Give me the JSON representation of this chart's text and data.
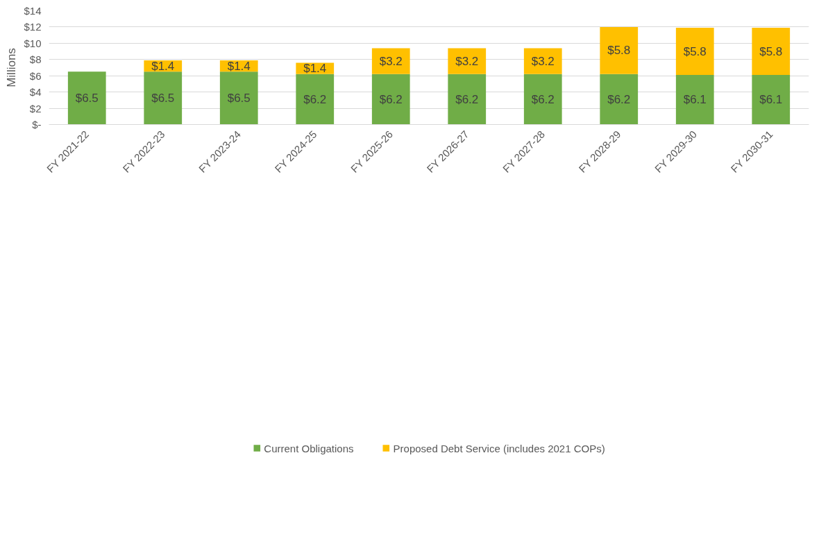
{
  "chart_data": {
    "type": "bar",
    "stacked": true,
    "ylabel": "Millions",
    "categories": [
      "FY 2021-22",
      "FY 2022-23",
      "FY 2023-24",
      "FY 2024-25",
      "FY 2025-26",
      "FY 2026-27",
      "FY 2027-28",
      "FY 2028-29",
      "FY 2029-30",
      "FY 2030-31"
    ],
    "series": [
      {
        "name": "Current Obligations",
        "color": "#70ad47",
        "values": [
          6.5,
          6.5,
          6.5,
          6.2,
          6.2,
          6.2,
          6.2,
          6.2,
          6.1,
          6.1
        ],
        "value_labels": [
          "$6.5",
          "$6.5",
          "$6.5",
          "$6.2",
          "$6.2",
          "$6.2",
          "$6.2",
          "$6.2",
          "$6.1",
          "$6.1"
        ]
      },
      {
        "name": "Proposed Debt Service (includes 2021 COPs)",
        "color": "#ffc000",
        "values": [
          null,
          1.4,
          1.4,
          1.4,
          3.2,
          3.2,
          3.2,
          5.8,
          5.8,
          5.8
        ],
        "value_labels": [
          null,
          "$1.4",
          "$1.4",
          "$1.4",
          "$3.2",
          "$3.2",
          "$3.2",
          "$5.8",
          "$5.8",
          "$5.8"
        ]
      }
    ],
    "ylim": [
      0,
      14
    ],
    "yticks": [
      {
        "value": 0,
        "label": "$-"
      },
      {
        "value": 2,
        "label": "$2"
      },
      {
        "value": 4,
        "label": "$4"
      },
      {
        "value": 6,
        "label": "$6"
      },
      {
        "value": 8,
        "label": "$8"
      },
      {
        "value": 10,
        "label": "$10"
      },
      {
        "value": 12,
        "label": "$12"
      },
      {
        "value": 14,
        "label": "$14"
      }
    ],
    "grid": "y",
    "legend": "bottom"
  }
}
